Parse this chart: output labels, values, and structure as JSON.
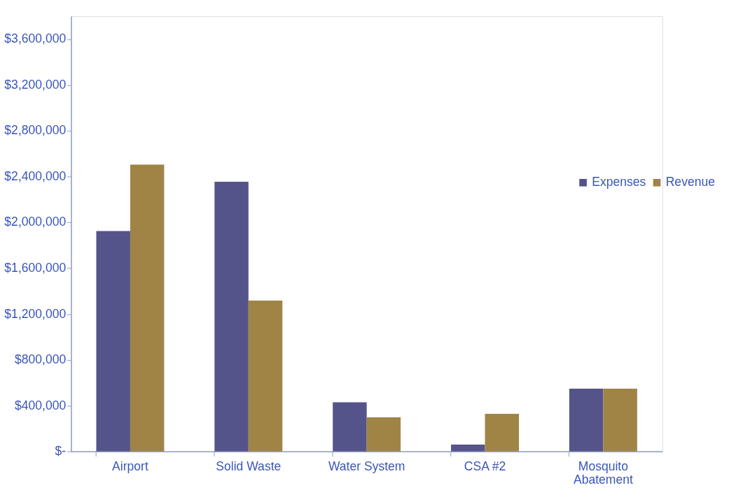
{
  "chart_data": {
    "type": "bar",
    "categories": [
      "Airport",
      "Solid Waste",
      "Water System",
      "CSA #2",
      "Mosquito Abatement"
    ],
    "series": [
      {
        "name": "Expenses",
        "color": "#55548a",
        "values": [
          1925000,
          2355000,
          429000,
          60000,
          548000
        ]
      },
      {
        "name": "Revenue",
        "color": "#a08446",
        "values": [
          2504000,
          1317000,
          298000,
          328000,
          548000
        ]
      }
    ],
    "ylim": [
      0,
      3800000
    ],
    "yticks": [
      {
        "value": 0,
        "label": "$-"
      },
      {
        "value": 400000,
        "label": "$400,000"
      },
      {
        "value": 800000,
        "label": "$800,000"
      },
      {
        "value": 1200000,
        "label": "$1,200,000"
      },
      {
        "value": 1600000,
        "label": "$1,600,000"
      },
      {
        "value": 2000000,
        "label": "$2,000,000"
      },
      {
        "value": 2400000,
        "label": "$2,400,000"
      },
      {
        "value": 2800000,
        "label": "$2,800,000"
      },
      {
        "value": 3200000,
        "label": "$3,200,000"
      },
      {
        "value": 3600000,
        "label": "$3,600,000"
      }
    ],
    "legend": "top right",
    "grid": false
  }
}
